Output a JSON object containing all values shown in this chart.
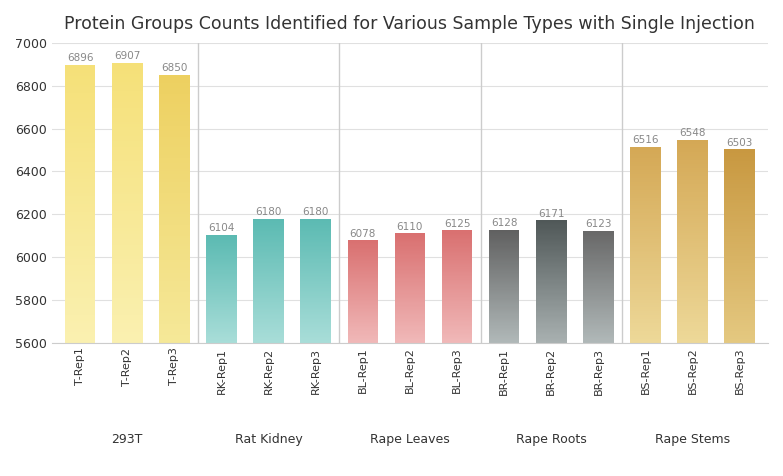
{
  "title": "Protein Groups Counts Identified for Various Sample Types with Single Injection",
  "bars": [
    {
      "label": "T-Rep1",
      "value": 6896,
      "color_top": "#F5E078",
      "color_bottom": "#FAF0B0",
      "group": "293T"
    },
    {
      "label": "T-Rep2",
      "value": 6907,
      "color_top": "#F5E078",
      "color_bottom": "#FAF0B0",
      "group": "293T"
    },
    {
      "label": "T-Rep3",
      "value": 6850,
      "color_top": "#EDD060",
      "color_bottom": "#F5E898",
      "group": "293T"
    },
    {
      "label": "RK-Rep1",
      "value": 6104,
      "color_top": "#5BBAB2",
      "color_bottom": "#A8DDD8",
      "group": "Rat Kidney"
    },
    {
      "label": "RK-Rep2",
      "value": 6180,
      "color_top": "#5BBAB2",
      "color_bottom": "#A8DDD8",
      "group": "Rat Kidney"
    },
    {
      "label": "RK-Rep3",
      "value": 6180,
      "color_top": "#5BBAB2",
      "color_bottom": "#A8DDD8",
      "group": "Rat Kidney"
    },
    {
      "label": "BL-Rep1",
      "value": 6078,
      "color_top": "#D97070",
      "color_bottom": "#F0B8B8",
      "group": "Rape Leaves"
    },
    {
      "label": "BL-Rep2",
      "value": 6110,
      "color_top": "#D97070",
      "color_bottom": "#F0B8B8",
      "group": "Rape Leaves"
    },
    {
      "label": "BL-Rep3",
      "value": 6125,
      "color_top": "#D97070",
      "color_bottom": "#F0B8B8",
      "group": "Rape Leaves"
    },
    {
      "label": "BR-Rep1",
      "value": 6128,
      "color_top": "#606060",
      "color_bottom": "#B0B8B8",
      "group": "Rape Roots"
    },
    {
      "label": "BR-Rep2",
      "value": 6171,
      "color_top": "#505858",
      "color_bottom": "#A8B0B0",
      "group": "Rape Roots"
    },
    {
      "label": "BR-Rep3",
      "value": 6123,
      "color_top": "#686868",
      "color_bottom": "#B0B8B8",
      "group": "Rape Roots"
    },
    {
      "label": "BS-Rep1",
      "value": 6516,
      "color_top": "#D4A855",
      "color_bottom": "#EDD898",
      "group": "Rape Stems"
    },
    {
      "label": "BS-Rep2",
      "value": 6548,
      "color_top": "#D4A855",
      "color_bottom": "#EDD898",
      "group": "Rape Stems"
    },
    {
      "label": "BS-Rep3",
      "value": 6503,
      "color_top": "#C89840",
      "color_bottom": "#E4C880",
      "group": "Rape Stems"
    }
  ],
  "group_labels": [
    "293T",
    "Rat Kidney",
    "Rape Leaves",
    "Rape Roots",
    "Rape Stems"
  ],
  "group_positions": [
    1.0,
    4.0,
    7.0,
    10.0,
    13.0
  ],
  "ylim": [
    5600,
    7000
  ],
  "yticks": [
    5600,
    5800,
    6000,
    6200,
    6400,
    6600,
    6800,
    7000
  ],
  "label_color": "#888888",
  "background_color": "#FFFFFF",
  "bar_width": 0.65,
  "title_fontsize": 12.5,
  "gradient_steps": 100
}
